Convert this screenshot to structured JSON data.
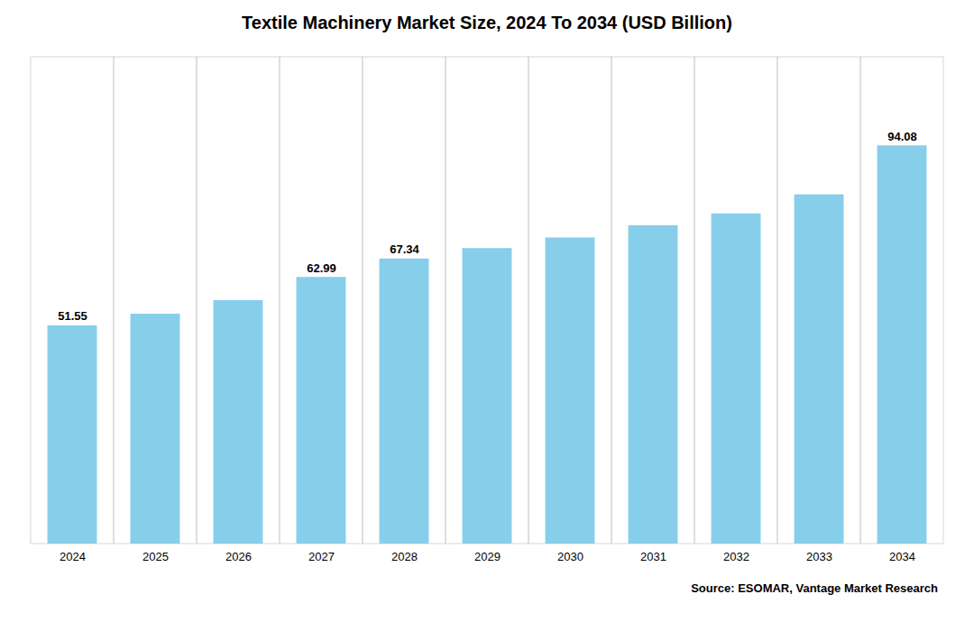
{
  "chart_data": {
    "type": "bar",
    "title": "Textile Machinery Market Size, 2024 To 2034 (USD Billion)",
    "categories": [
      "2024",
      "2025",
      "2026",
      "2027",
      "2028",
      "2029",
      "2030",
      "2031",
      "2032",
      "2033",
      "2034"
    ],
    "values": [
      51.55,
      54.3,
      57.5,
      62.99,
      67.34,
      69.8,
      72.3,
      75.2,
      78.0,
      82.5,
      94.08
    ],
    "value_labels": [
      "51.55",
      null,
      null,
      "62.99",
      "67.34",
      null,
      null,
      null,
      null,
      null,
      "94.08"
    ],
    "data_labels": true,
    "color": "#87CEEB",
    "ylim": [
      0,
      115
    ],
    "tick_labels": "x",
    "grid": "x",
    "annotations": [
      "Source: ESOMAR, Vantage Market Research"
    ]
  }
}
